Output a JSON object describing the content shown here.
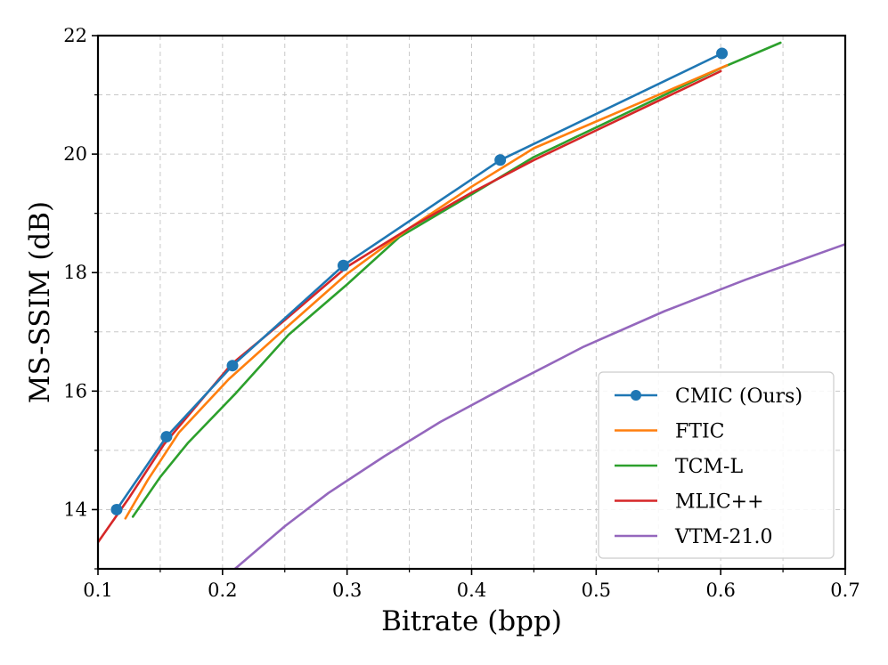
{
  "chart_data": {
    "type": "line",
    "title": "",
    "xlabel": "Bitrate (bpp)",
    "ylabel": "MS-SSIM (dB)",
    "xlim": [
      0.1,
      0.7
    ],
    "ylim": [
      13.0,
      22.0
    ],
    "xticks": [
      0.1,
      0.2,
      0.3,
      0.4,
      0.5,
      0.6,
      0.7
    ],
    "xtick_labels": [
      "0.1",
      "0.2",
      "0.3",
      "0.4",
      "0.5",
      "0.6",
      "0.7"
    ],
    "yticks": [
      14,
      16,
      18,
      20,
      22
    ],
    "ytick_labels": [
      "14",
      "16",
      "18",
      "20",
      "22"
    ],
    "grid": true,
    "legend_position": "lower-right",
    "series": [
      {
        "name": "CMIC (Ours)",
        "color": "#1f77b4",
        "marker": "circle",
        "x": [
          0.115,
          0.155,
          0.208,
          0.297,
          0.423,
          0.601
        ],
        "y": [
          14.0,
          15.23,
          16.43,
          18.12,
          19.9,
          21.7
        ]
      },
      {
        "name": "FTIC",
        "color": "#ff7f0e",
        "marker": "none",
        "x": [
          0.122,
          0.14,
          0.165,
          0.205,
          0.25,
          0.3,
          0.35,
          0.4,
          0.45,
          0.5,
          0.55,
          0.605
        ],
        "y": [
          13.85,
          14.5,
          15.3,
          16.2,
          17.05,
          17.98,
          18.75,
          19.45,
          20.1,
          20.55,
          21.0,
          21.5
        ]
      },
      {
        "name": "TCM-L",
        "color": "#2ca02c",
        "marker": "none",
        "x": [
          0.128,
          0.15,
          0.172,
          0.21,
          0.253,
          0.3,
          0.342,
          0.4,
          0.45,
          0.5,
          0.55,
          0.6,
          0.648
        ],
        "y": [
          13.88,
          14.55,
          15.12,
          15.95,
          16.95,
          17.8,
          18.6,
          19.32,
          19.95,
          20.45,
          20.95,
          21.45,
          21.88
        ]
      },
      {
        "name": "MLIC++",
        "color": "#d62728",
        "marker": "none",
        "x": [
          0.1,
          0.125,
          0.153,
          0.207,
          0.25,
          0.3,
          0.35,
          0.4,
          0.45,
          0.5,
          0.55,
          0.6
        ],
        "y": [
          13.45,
          14.2,
          15.1,
          16.45,
          17.2,
          18.1,
          18.75,
          19.35,
          19.9,
          20.4,
          20.9,
          21.4
        ]
      },
      {
        "name": "VTM-21.0",
        "color": "#9467bd",
        "marker": "none",
        "x": [
          0.21,
          0.25,
          0.285,
          0.33,
          0.375,
          0.43,
          0.49,
          0.555,
          0.62,
          0.7
        ],
        "y": [
          13.0,
          13.72,
          14.28,
          14.9,
          15.48,
          16.1,
          16.75,
          17.35,
          17.88,
          18.48
        ]
      }
    ]
  }
}
